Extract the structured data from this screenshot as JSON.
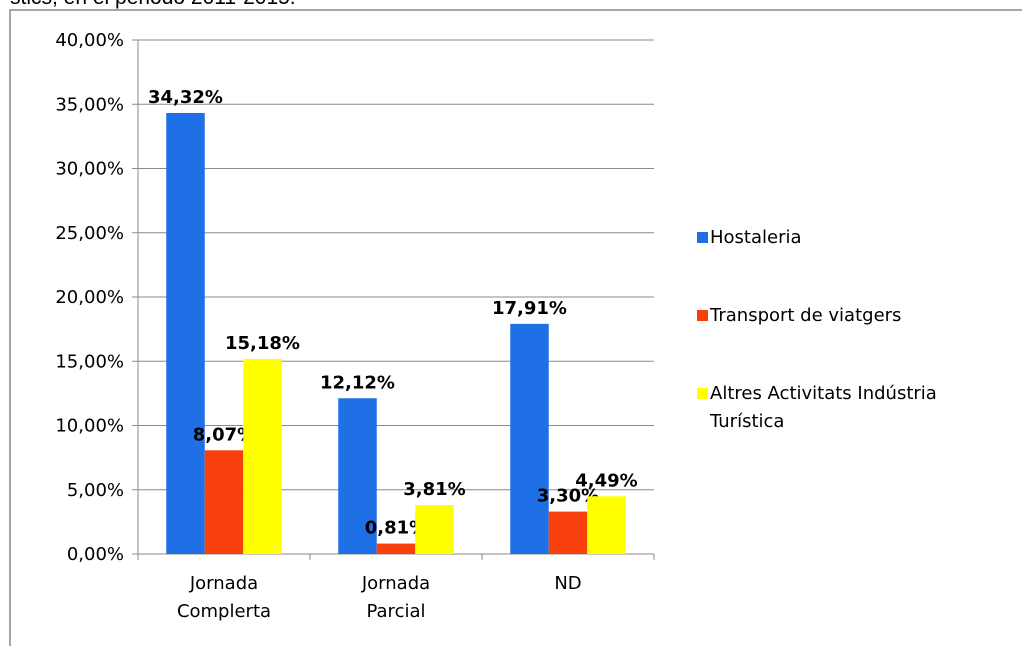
{
  "chart_data": {
    "type": "bar",
    "header_text": "stics, en el periodo 2011-2015.",
    "categories": [
      "Jornada Complerta",
      "Jornada Parcial",
      "ND"
    ],
    "series": [
      {
        "name": "Hostaleria",
        "color": "#1f6fe6",
        "values": [
          34.32,
          12.12,
          17.91
        ],
        "value_labels": [
          "34,32%",
          "12,12%",
          "17,91%"
        ]
      },
      {
        "name": "Transport de viatgers",
        "color": "#f7400c",
        "values": [
          8.07,
          0.81,
          3.3
        ],
        "value_labels": [
          "8,07%",
          "0,81%",
          "3,30%"
        ]
      },
      {
        "name": "Altres Activitats Indústria Turística",
        "color": "#ffff00",
        "values": [
          15.18,
          3.81,
          4.49
        ],
        "value_labels": [
          "15,18%",
          "3,81%",
          "4,49%"
        ]
      }
    ],
    "ylim": [
      0,
      40
    ],
    "yticks": [
      {
        "value": 0,
        "label": "0,00%"
      },
      {
        "value": 5,
        "label": "5,00%"
      },
      {
        "value": 10,
        "label": "10,00%"
      },
      {
        "value": 15,
        "label": "15,00%"
      },
      {
        "value": 20,
        "label": "20,00%"
      },
      {
        "value": 25,
        "label": "25,00%"
      },
      {
        "value": 30,
        "label": "30,00%"
      },
      {
        "value": 35,
        "label": "35,00%"
      },
      {
        "value": 40,
        "label": "40,00%"
      }
    ],
    "grid": true,
    "legend": "right"
  }
}
